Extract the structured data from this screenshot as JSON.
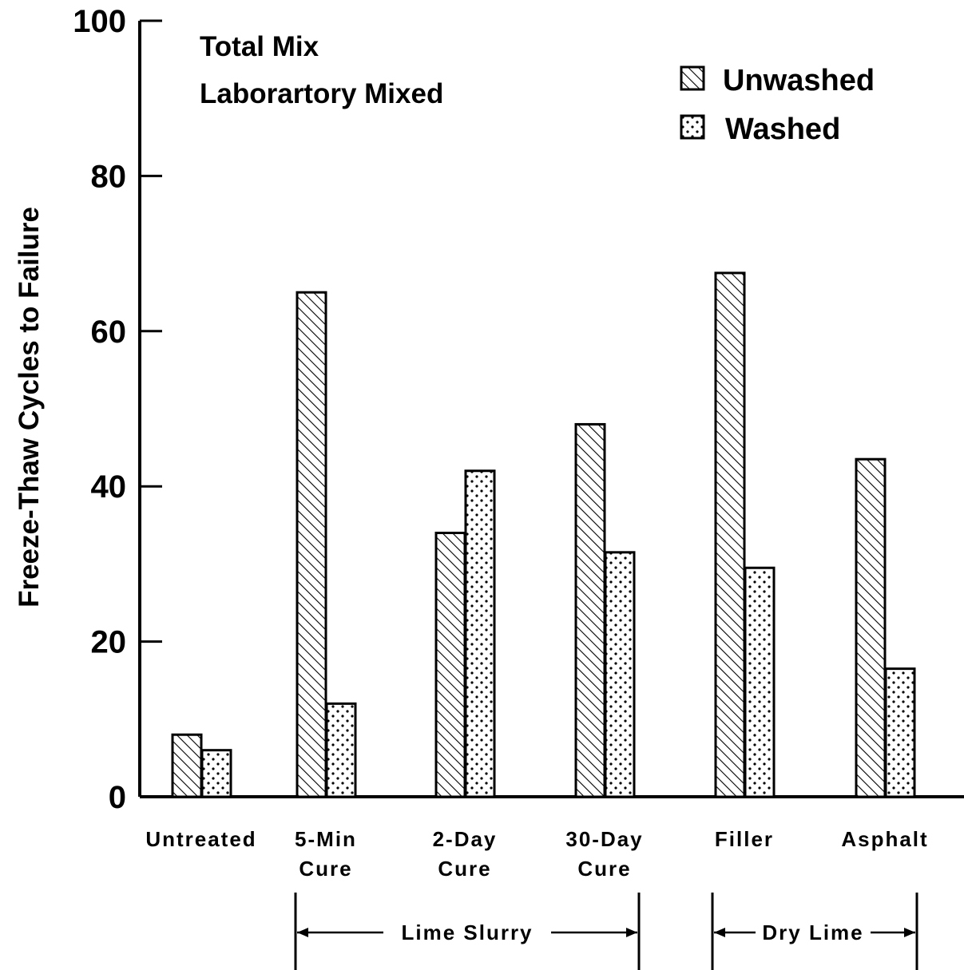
{
  "chart_data": {
    "type": "bar",
    "title": "Total Mix",
    "subtitle": "Laborartory Mixed",
    "ylabel": "Freeze-Thaw Cycles to Failure",
    "xlabel": "",
    "ylim": [
      0,
      100
    ],
    "yticks": [
      0,
      20,
      40,
      60,
      80,
      100
    ],
    "grid": false,
    "legend_position": "top-right",
    "categories": [
      [
        "Untreated"
      ],
      [
        "5-Min",
        "Cure"
      ],
      [
        "2-Day",
        "Cure"
      ],
      [
        "30-Day",
        "Cure"
      ],
      [
        "Filler"
      ],
      [
        "Asphalt"
      ]
    ],
    "series": [
      {
        "name": "Unwashed",
        "pattern": "diagonal-hatch",
        "values": [
          8,
          65,
          34,
          48,
          67.5,
          43.5
        ]
      },
      {
        "name": "Washed",
        "pattern": "dots",
        "values": [
          6,
          12,
          42,
          31.5,
          29.5,
          16.5
        ]
      }
    ],
    "groups": [
      {
        "label": "Lime Slurry",
        "categories": [
          1,
          2,
          3
        ]
      },
      {
        "label": "Dry Lime",
        "categories": [
          4,
          5
        ]
      }
    ],
    "colors": {
      "ink": "#000000",
      "background": "#ffffff"
    }
  }
}
